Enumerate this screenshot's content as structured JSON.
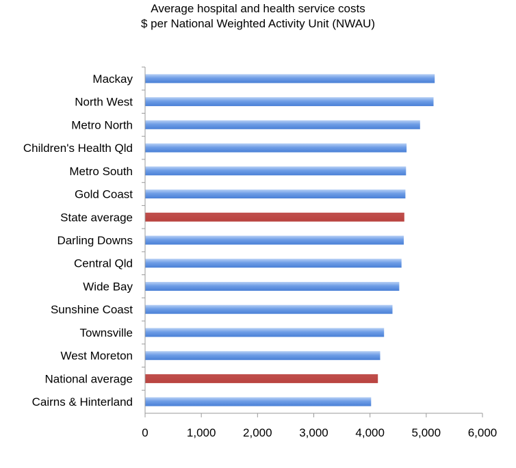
{
  "chart_data": {
    "type": "bar",
    "orientation": "horizontal",
    "title": "Average hospital and health service costs",
    "subtitle": "$ per National Weighted Activity Unit (NWAU)",
    "xlabel": "",
    "ylabel": "",
    "xlim": [
      0,
      6000
    ],
    "x_ticks": [
      "0",
      "1,000",
      "2,000",
      "3,000",
      "4,000",
      "5,000",
      "6,000"
    ],
    "grid": false,
    "legend": "none",
    "colors": {
      "default": "#6e9de6",
      "highlight": "#c0504d"
    },
    "categories": [
      "Mackay",
      "North West",
      "Metro North",
      "Children's Health Qld",
      "Metro South",
      "Gold Coast",
      "State average",
      "Darling Downs",
      "Central Qld",
      "Wide Bay",
      "Sunshine Coast",
      "Townsville",
      "West Moreton",
      "National average",
      "Cairns & Hinterland"
    ],
    "values": [
      5150,
      5130,
      4890,
      4650,
      4640,
      4630,
      4610,
      4600,
      4560,
      4520,
      4400,
      4250,
      4180,
      4140,
      4020
    ],
    "highlighted": [
      "State average",
      "National average"
    ]
  }
}
